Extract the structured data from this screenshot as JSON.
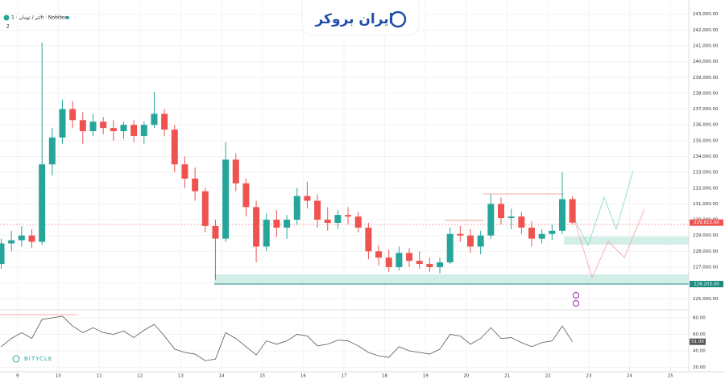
{
  "header": {
    "symbol": "تتر / تومان · 1h · Nobitex",
    "indicator_count": "2"
  },
  "logo": "ایران بروکر",
  "watermark": "BITYCLE",
  "chart_data": [
    {
      "type": "candlestick",
      "up_color": "#26a69a",
      "down_color": "#ef5350",
      "x": [
        8.6,
        8.85,
        9.1,
        9.35,
        9.6,
        9.85,
        10.1,
        10.35,
        10.6,
        10.85,
        11.1,
        11.35,
        11.6,
        11.85,
        12.1,
        12.35,
        12.6,
        12.85,
        13.1,
        13.35,
        13.6,
        13.85,
        14.1,
        14.35,
        14.6,
        14.85,
        15.1,
        15.35,
        15.6,
        15.85,
        16.1,
        16.35,
        16.6,
        16.85,
        17.1,
        17.35,
        17.6,
        17.85,
        18.1,
        18.35,
        18.6,
        18.85,
        19.1,
        19.35,
        19.6,
        19.85,
        20.1,
        20.35,
        20.6,
        20.85,
        21.1,
        21.35,
        21.6,
        21.85,
        22.1,
        22.35,
        22.6
      ],
      "open": [
        227200,
        228500,
        228700,
        229000,
        228600,
        233500,
        235200,
        237000,
        236300,
        235600,
        236200,
        235800,
        235600,
        236000,
        235300,
        236000,
        236700,
        235700,
        233500,
        232600,
        231800,
        229600,
        228800,
        233800,
        232300,
        230800,
        228300,
        230000,
        229500,
        230000,
        231500,
        231200,
        230000,
        229800,
        230300,
        230200,
        229500,
        228000,
        227600,
        227000,
        227900,
        227400,
        227200,
        227000,
        227300,
        229100,
        229000,
        228300,
        229000,
        231000,
        230100,
        230200,
        229500,
        228800,
        229100,
        229300,
        231300
      ],
      "high": [
        228800,
        229300,
        229600,
        229400,
        241200,
        235800,
        237600,
        237500,
        236800,
        236700,
        236500,
        236300,
        236200,
        236300,
        236200,
        238100,
        237000,
        236000,
        234000,
        233300,
        232000,
        230000,
        234900,
        234200,
        232600,
        231200,
        230400,
        230600,
        230300,
        232000,
        232400,
        231600,
        230800,
        230600,
        230800,
        230500,
        229800,
        228400,
        228100,
        228300,
        228200,
        228000,
        227600,
        227600,
        229500,
        229600,
        229400,
        229300,
        231600,
        231400,
        230700,
        230500,
        229900,
        229400,
        229700,
        233000,
        231500
      ],
      "low": [
        226900,
        228000,
        228300,
        228200,
        228400,
        232800,
        234800,
        235800,
        234800,
        235300,
        235400,
        235000,
        235100,
        234900,
        234800,
        235800,
        235300,
        233000,
        232000,
        231200,
        229200,
        226200,
        228600,
        231800,
        230200,
        227300,
        228000,
        228900,
        228800,
        229700,
        230700,
        229500,
        229300,
        229400,
        229700,
        229200,
        227500,
        227100,
        226700,
        226800,
        227000,
        226900,
        226700,
        226600,
        227200,
        228600,
        227900,
        227800,
        228800,
        229700,
        229400,
        229100,
        228300,
        228500,
        228700,
        229100,
        229700
      ],
      "close": [
        228500,
        228700,
        229000,
        228600,
        233500,
        235200,
        237000,
        236300,
        235600,
        236200,
        235800,
        235600,
        236000,
        235300,
        236000,
        236700,
        235700,
        233500,
        232600,
        231800,
        229600,
        228800,
        233800,
        232300,
        230800,
        228300,
        230000,
        229500,
        230000,
        231500,
        231200,
        230000,
        229800,
        230300,
        230200,
        229500,
        228000,
        227600,
        227000,
        227900,
        227400,
        227200,
        227000,
        227300,
        229100,
        229000,
        228300,
        229000,
        231000,
        230100,
        230200,
        229500,
        228800,
        229100,
        229300,
        231300,
        229815
      ],
      "last_value_label": "229,815.00",
      "support_label": "226,203.00",
      "xlim": [
        8.57,
        25.45
      ],
      "xticks": [
        9,
        10,
        11,
        12,
        13,
        14,
        15,
        16,
        17,
        18,
        19,
        20,
        21,
        22,
        23,
        24,
        25
      ],
      "ylim": [
        224300,
        243900
      ],
      "yticks": [
        {
          "value": 225000,
          "label": "225,000.00"
        },
        {
          "value": 226000,
          "label": "226,000.00"
        },
        {
          "value": 227000,
          "label": "227,000.00"
        },
        {
          "value": 228000,
          "label": "228,000.00"
        },
        {
          "value": 229000,
          "label": "229,000.00"
        },
        {
          "value": 230000,
          "label": "230,000.00"
        },
        {
          "value": 231000,
          "label": "231,000.00"
        },
        {
          "value": 232000,
          "label": "232,000.00"
        },
        {
          "value": 233000,
          "label": "233,000.00"
        },
        {
          "value": 234000,
          "label": "234,000.00"
        },
        {
          "value": 235000,
          "label": "235,000.00"
        },
        {
          "value": 236000,
          "label": "236,000.00"
        },
        {
          "value": 237000,
          "label": "237,000.00"
        },
        {
          "value": 238000,
          "label": "238,000.00"
        },
        {
          "value": 239000,
          "label": "239,000.00"
        },
        {
          "value": 240000,
          "label": "240,000.00"
        },
        {
          "value": 241000,
          "label": "241,000.00"
        },
        {
          "value": 242000,
          "label": "242,000.00"
        },
        {
          "value": 243000,
          "label": "243,000.00"
        }
      ]
    },
    {
      "type": "line",
      "color": "#555555",
      "x": [
        8.6,
        8.85,
        9.1,
        9.35,
        9.6,
        9.85,
        10.1,
        10.35,
        10.6,
        10.85,
        11.1,
        11.35,
        11.6,
        11.85,
        12.1,
        12.35,
        12.6,
        12.85,
        13.1,
        13.35,
        13.6,
        13.85,
        14.1,
        14.35,
        14.6,
        14.85,
        15.1,
        15.35,
        15.6,
        15.85,
        16.1,
        16.35,
        16.6,
        16.85,
        17.1,
        17.35,
        17.6,
        17.85,
        18.1,
        18.35,
        18.6,
        18.85,
        19.1,
        19.35,
        19.6,
        19.85,
        20.1,
        20.35,
        20.6,
        20.85,
        21.1,
        21.35,
        21.6,
        21.85,
        22.1,
        22.35,
        22.6
      ],
      "values": [
        45,
        55,
        62,
        55,
        78,
        80,
        82,
        70,
        62,
        68,
        62,
        60,
        64,
        56,
        65,
        72,
        58,
        42,
        38,
        36,
        28,
        30,
        62,
        55,
        45,
        35,
        52,
        48,
        52,
        60,
        58,
        46,
        48,
        53,
        52,
        46,
        38,
        34,
        32,
        45,
        40,
        38,
        36,
        42,
        60,
        58,
        48,
        55,
        68,
        55,
        56,
        50,
        45,
        50,
        52,
        70,
        51
      ],
      "last_value_label": "51.00",
      "xlim": [
        8.57,
        25.45
      ],
      "ylim": [
        14.6,
        86.8
      ],
      "yticks": [
        {
          "value": 20,
          "label": "20.00"
        },
        {
          "value": 40,
          "label": "40.00"
        },
        {
          "value": 60,
          "label": "60.00"
        },
        {
          "value": 80,
          "label": "80.00"
        }
      ]
    }
  ]
}
